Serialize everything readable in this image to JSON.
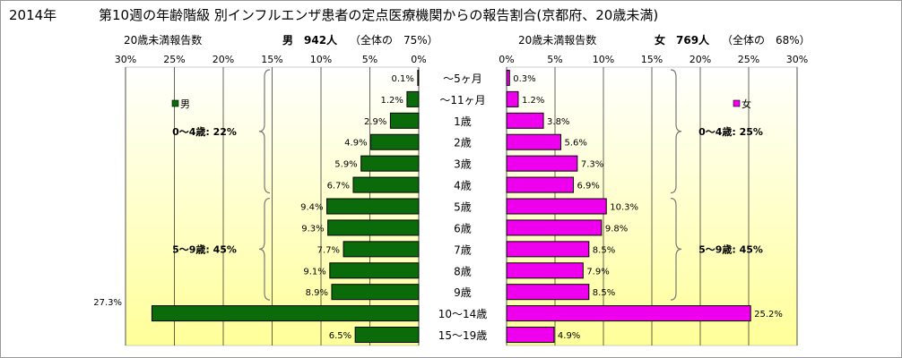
{
  "title": {
    "year": "2014年",
    "main": "第10週の年齢階級 別インフルエンザ患者の定点医療機関からの報告割合(京都府、20歳未満)"
  },
  "header": {
    "left_count_label": "20歳未満報告数",
    "male_label": "男　942人",
    "male_share": "（全体の　75%）",
    "right_count_label": "20歳未満報告数",
    "female_label": "女　769人",
    "female_share": "（全体の　68%）"
  },
  "colors": {
    "male": "#0b6b0b",
    "female": "#ee00ee",
    "bg_top": "#ffffff",
    "bg_bottom": "#ffff99"
  },
  "chart_data": [
    {
      "type": "bar",
      "orientation": "horizontal",
      "direction": "right-to-left",
      "legend": "男",
      "legend_position": "top-right",
      "categories": [
        "～5ヶ月",
        "～11ヶ月",
        "1歳",
        "2歳",
        "3歳",
        "4歳",
        "5歳",
        "6歳",
        "7歳",
        "8歳",
        "9歳",
        "10～14歳",
        "15～19歳"
      ],
      "values": [
        0.1,
        1.2,
        2.9,
        4.9,
        5.9,
        6.7,
        9.4,
        9.3,
        7.7,
        9.1,
        8.9,
        27.3,
        6.5
      ],
      "value_labels": [
        "0.1%",
        "1.2%",
        "2.9%",
        "4.9%",
        "5.9%",
        "6.7%",
        "9.4%",
        "9.3%",
        "7.7%",
        "9.1%",
        "8.9%",
        "27.3%",
        "6.5%"
      ],
      "xlim": [
        0,
        30
      ],
      "ticks": [
        "0%",
        "5%",
        "10%",
        "15%",
        "20%",
        "25%",
        "30%"
      ],
      "grid": true,
      "groups": [
        {
          "label": "0～4歳: 22%",
          "from": 0,
          "to": 5
        },
        {
          "label": "5～9歳: 45%",
          "from": 6,
          "to": 10
        }
      ]
    },
    {
      "type": "bar",
      "orientation": "horizontal",
      "direction": "left-to-right",
      "legend": "女",
      "legend_position": "top-right",
      "categories": [
        "～5ヶ月",
        "～11ヶ月",
        "1歳",
        "2歳",
        "3歳",
        "4歳",
        "5歳",
        "6歳",
        "7歳",
        "8歳",
        "9歳",
        "10～14歳",
        "15～19歳"
      ],
      "values": [
        0.3,
        1.2,
        3.8,
        5.6,
        7.3,
        6.9,
        10.3,
        9.8,
        8.5,
        7.9,
        8.5,
        25.2,
        4.9
      ],
      "value_labels": [
        "0.3%",
        "1.2%",
        "3.8%",
        "5.6%",
        "7.3%",
        "6.9%",
        "10.3%",
        "9.8%",
        "8.5%",
        "7.9%",
        "8.5%",
        "25.2%",
        "4.9%"
      ],
      "xlim": [
        0,
        30
      ],
      "ticks": [
        "0%",
        "5%",
        "10%",
        "15%",
        "20%",
        "25%",
        "30%"
      ],
      "grid": true,
      "groups": [
        {
          "label": "0～4歳: 25%",
          "from": 0,
          "to": 5
        },
        {
          "label": "5～9歳: 45%",
          "from": 6,
          "to": 10
        }
      ]
    }
  ]
}
